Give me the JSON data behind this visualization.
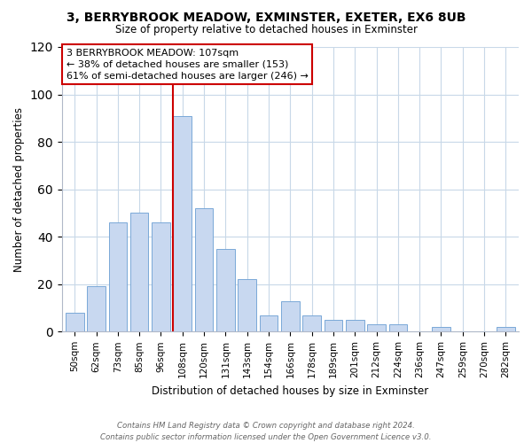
{
  "title": "3, BERRYBROOK MEADOW, EXMINSTER, EXETER, EX6 8UB",
  "subtitle": "Size of property relative to detached houses in Exminster",
  "xlabel": "Distribution of detached houses by size in Exminster",
  "ylabel": "Number of detached properties",
  "bar_labels": [
    "50sqm",
    "62sqm",
    "73sqm",
    "85sqm",
    "96sqm",
    "108sqm",
    "120sqm",
    "131sqm",
    "143sqm",
    "154sqm",
    "166sqm",
    "178sqm",
    "189sqm",
    "201sqm",
    "212sqm",
    "224sqm",
    "236sqm",
    "247sqm",
    "259sqm",
    "270sqm",
    "282sqm"
  ],
  "bar_heights": [
    8,
    19,
    46,
    50,
    46,
    91,
    52,
    35,
    22,
    7,
    13,
    7,
    5,
    5,
    3,
    3,
    0,
    2,
    0,
    0,
    2
  ],
  "bar_color": "#c8d8f0",
  "bar_edge_color": "#7aa8d8",
  "highlight_index": 5,
  "highlight_line_color": "#cc0000",
  "ylim": [
    0,
    120
  ],
  "yticks": [
    0,
    20,
    40,
    60,
    80,
    100,
    120
  ],
  "annotation_title": "3 BERRYBROOK MEADOW: 107sqm",
  "annotation_line1": "← 38% of detached houses are smaller (153)",
  "annotation_line2": "61% of semi-detached houses are larger (246) →",
  "annotation_box_color": "#ffffff",
  "annotation_box_edge_color": "#cc0000",
  "footer_line1": "Contains HM Land Registry data © Crown copyright and database right 2024.",
  "footer_line2": "Contains public sector information licensed under the Open Government Licence v3.0.",
  "background_color": "#ffffff",
  "grid_color": "#c8d8e8"
}
